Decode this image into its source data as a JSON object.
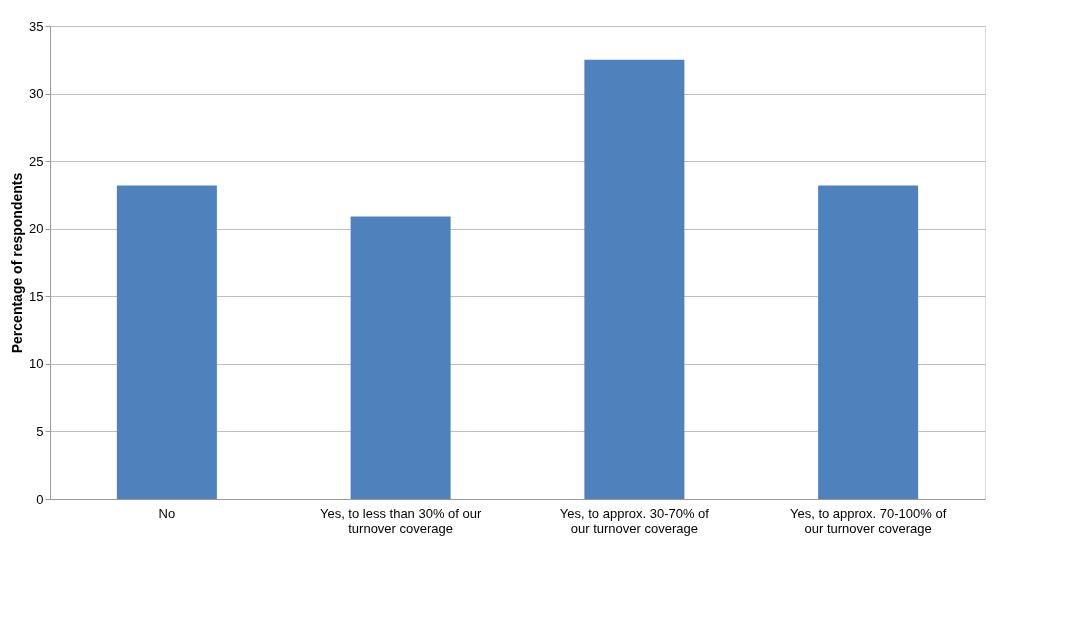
{
  "chart_data": {
    "type": "bar",
    "ylabel": "Percentage of respondents",
    "categories": [
      "No",
      "Yes, to less than 30% of our turnover coverage",
      "Yes, to approx. 30-70% of our turnover coverage",
      "Yes, to approx. 70-100% of our turnover coverage"
    ],
    "values": [
      23.2,
      20.9,
      32.5,
      23.2
    ],
    "color": "#4f81bd",
    "ylim": [
      0,
      35
    ],
    "yticks": [
      0,
      5,
      10,
      15,
      20,
      25,
      30,
      35
    ],
    "grid": "y"
  }
}
